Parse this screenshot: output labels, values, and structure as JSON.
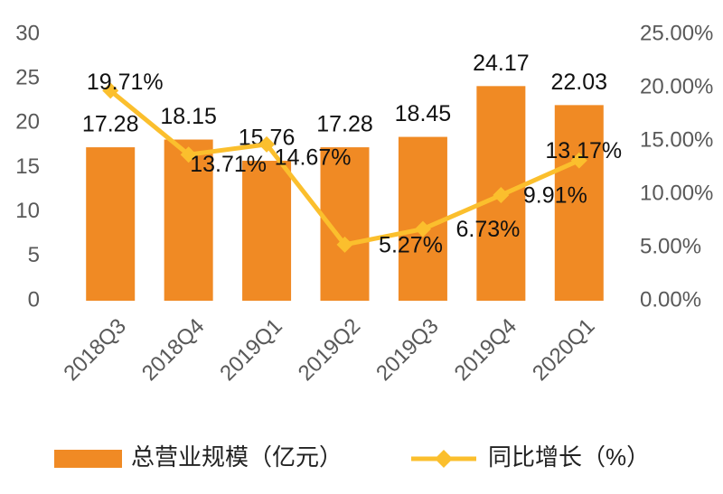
{
  "chart_data": {
    "type": "combo",
    "categories": [
      "2018Q3",
      "2018Q4",
      "2019Q1",
      "2019Q2",
      "2019Q3",
      "2019Q4",
      "2020Q1"
    ],
    "series": [
      {
        "name": "总营业规模（亿元）",
        "type": "bar",
        "color": "#f08a24",
        "values": [
          17.28,
          18.15,
          15.76,
          17.28,
          18.45,
          24.17,
          22.03
        ]
      },
      {
        "name": "同比增长（%）",
        "type": "line",
        "axis": "y2",
        "color": "#fbbf2d",
        "values": [
          19.71,
          13.71,
          14.67,
          5.27,
          6.73,
          9.91,
          13.17
        ],
        "value_labels": [
          "19.71%",
          "13.71%",
          "14.67%",
          "5.27%",
          "6.73%",
          "9.91%",
          "13.17%"
        ]
      }
    ],
    "ylim": [
      0,
      30
    ],
    "yticks": [
      0,
      5,
      10,
      15,
      20,
      25,
      30
    ],
    "y2lim": [
      0,
      25
    ],
    "y2ticks": [
      {
        "value": 0,
        "label": "0.00%"
      },
      {
        "value": 5,
        "label": "5.00%"
      },
      {
        "value": 10,
        "label": "10.00%"
      },
      {
        "value": 15,
        "label": "15.00%"
      },
      {
        "value": 20,
        "label": "20.00%"
      },
      {
        "value": 25,
        "label": "25.00%"
      }
    ],
    "grid": false
  }
}
